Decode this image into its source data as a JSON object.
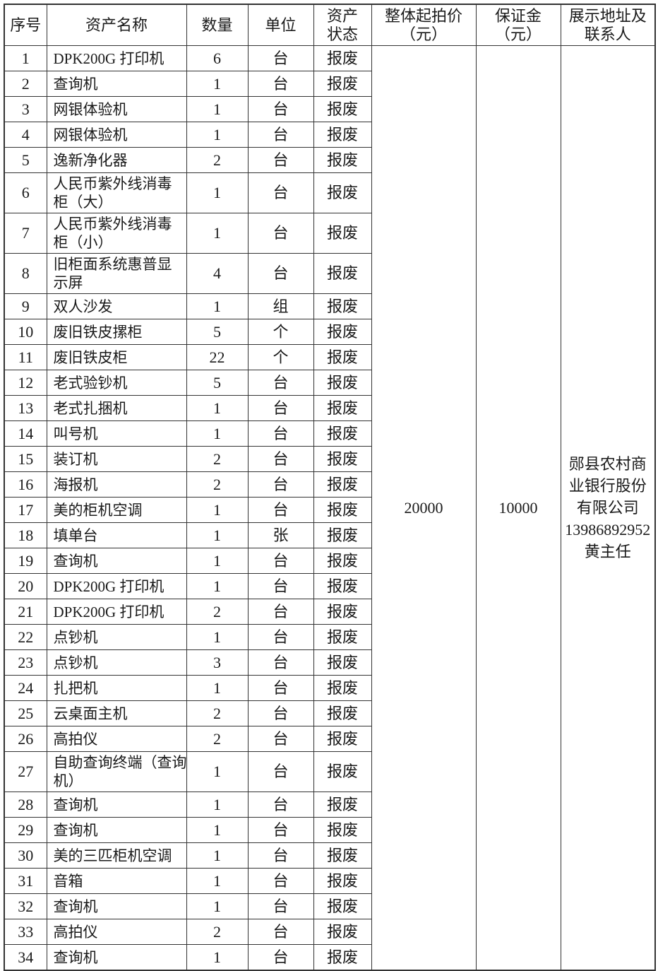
{
  "table": {
    "columns": [
      {
        "key": "index",
        "label": "序号"
      },
      {
        "key": "name",
        "label": "资产名称"
      },
      {
        "key": "qty",
        "label": "数量"
      },
      {
        "key": "unit",
        "label": "单位"
      },
      {
        "key": "status",
        "label": "资产\n状态"
      },
      {
        "key": "price",
        "label": "整体起拍价\n（元）"
      },
      {
        "key": "deposit",
        "label": "保证金\n（元）"
      },
      {
        "key": "contact",
        "label": "展示地址及\n联系人"
      }
    ],
    "rows": [
      {
        "index": "1",
        "name": "DPK200G 打印机",
        "qty": "6",
        "unit": "台",
        "status": "报废"
      },
      {
        "index": "2",
        "name": "查询机",
        "qty": "1",
        "unit": "台",
        "status": "报废"
      },
      {
        "index": "3",
        "name": "网银体验机",
        "qty": "1",
        "unit": "台",
        "status": "报废"
      },
      {
        "index": "4",
        "name": "网银体验机",
        "qty": "1",
        "unit": "台",
        "status": "报废"
      },
      {
        "index": "5",
        "name": "逸新净化器",
        "qty": "2",
        "unit": "台",
        "status": "报废"
      },
      {
        "index": "6",
        "name": "人民币紫外线消毒\n柜（大）",
        "qty": "1",
        "unit": "台",
        "status": "报废"
      },
      {
        "index": "7",
        "name": "人民币紫外线消毒\n柜（小）",
        "qty": "1",
        "unit": "台",
        "status": "报废"
      },
      {
        "index": "8",
        "name": "旧柜面系统惠普显\n示屏",
        "qty": "4",
        "unit": "台",
        "status": "报废"
      },
      {
        "index": "9",
        "name": "双人沙发",
        "qty": "1",
        "unit": "组",
        "status": "报废"
      },
      {
        "index": "10",
        "name": "废旧铁皮摞柜",
        "qty": "5",
        "unit": "个",
        "status": "报废"
      },
      {
        "index": "11",
        "name": "废旧铁皮柜",
        "qty": "22",
        "unit": "个",
        "status": "报废"
      },
      {
        "index": "12",
        "name": "老式验钞机",
        "qty": "5",
        "unit": "台",
        "status": "报废"
      },
      {
        "index": "13",
        "name": "老式扎捆机",
        "qty": "1",
        "unit": "台",
        "status": "报废"
      },
      {
        "index": "14",
        "name": "叫号机",
        "qty": "1",
        "unit": "台",
        "status": "报废"
      },
      {
        "index": "15",
        "name": "装订机",
        "qty": "2",
        "unit": "台",
        "status": "报废"
      },
      {
        "index": "16",
        "name": "海报机",
        "qty": "2",
        "unit": "台",
        "status": "报废"
      },
      {
        "index": "17",
        "name": "美的柜机空调",
        "qty": "1",
        "unit": "台",
        "status": "报废"
      },
      {
        "index": "18",
        "name": "填单台",
        "qty": "1",
        "unit": "张",
        "status": "报废"
      },
      {
        "index": "19",
        "name": "查询机",
        "qty": "1",
        "unit": "台",
        "status": "报废"
      },
      {
        "index": "20",
        "name": "DPK200G 打印机",
        "qty": "1",
        "unit": "台",
        "status": "报废"
      },
      {
        "index": "21",
        "name": "DPK200G 打印机",
        "qty": "2",
        "unit": "台",
        "status": "报废"
      },
      {
        "index": "22",
        "name": "点钞机",
        "qty": "1",
        "unit": "台",
        "status": "报废"
      },
      {
        "index": "23",
        "name": "点钞机",
        "qty": "3",
        "unit": "台",
        "status": "报废"
      },
      {
        "index": "24",
        "name": "扎把机",
        "qty": "1",
        "unit": "台",
        "status": "报废"
      },
      {
        "index": "25",
        "name": "云桌面主机",
        "qty": "2",
        "unit": "台",
        "status": "报废"
      },
      {
        "index": "26",
        "name": "高拍仪",
        "qty": "2",
        "unit": "台",
        "status": "报废"
      },
      {
        "index": "27",
        "name": "自助查询终端（查询\n机）",
        "qty": "1",
        "unit": "台",
        "status": "报废"
      },
      {
        "index": "28",
        "name": "查询机",
        "qty": "1",
        "unit": "台",
        "status": "报废"
      },
      {
        "index": "29",
        "name": "查询机",
        "qty": "1",
        "unit": "台",
        "status": "报废"
      },
      {
        "index": "30",
        "name": "美的三匹柜机空调",
        "qty": "1",
        "unit": "台",
        "status": "报废"
      },
      {
        "index": "31",
        "name": "音箱",
        "qty": "1",
        "unit": "台",
        "status": "报废"
      },
      {
        "index": "32",
        "name": "查询机",
        "qty": "1",
        "unit": "台",
        "status": "报废"
      },
      {
        "index": "33",
        "name": "高拍仪",
        "qty": "2",
        "unit": "台",
        "status": "报废"
      },
      {
        "index": "34",
        "name": "查询机",
        "qty": "1",
        "unit": "台",
        "status": "报废"
      }
    ],
    "merged": {
      "starting_price": "20000",
      "deposit": "10000",
      "address_contact": "郧县农村商\n业银行股份\n有限公司\n13986892952\n黄主任"
    }
  }
}
